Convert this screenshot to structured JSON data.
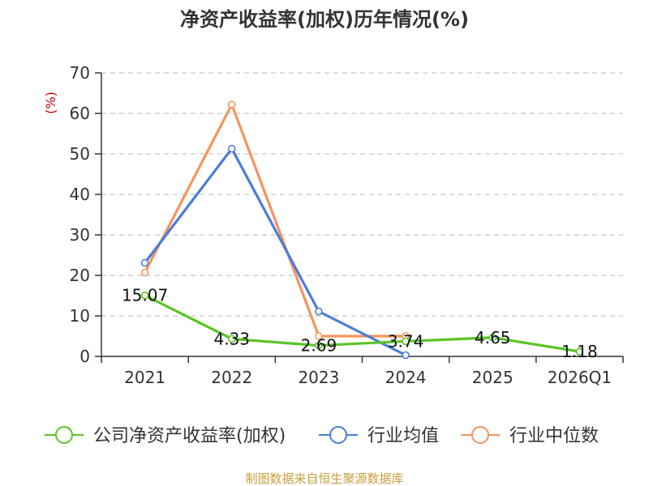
{
  "chart_data": {
    "type": "line",
    "title": "净资产收益率(加权)历年情况(%)",
    "ylabel": "(%)",
    "ylim": [
      0,
      70
    ],
    "yticks": [
      0,
      10,
      20,
      30,
      40,
      50,
      60,
      70
    ],
    "grid": true,
    "legend_position": "bottom",
    "categories": [
      "2021",
      "2022",
      "2023",
      "2024",
      "2025",
      "2026Q1"
    ],
    "series": [
      {
        "name": "公司净资产收益率(加权)",
        "color": "#5bc426",
        "values": [
          15.07,
          4.33,
          2.69,
          3.74,
          4.65,
          1.18
        ],
        "labels": [
          "15.07",
          "4.33",
          "2.69",
          "3.74",
          "4.65",
          "1.18"
        ]
      },
      {
        "name": "行业均值",
        "color": "#4a7ddb",
        "values": [
          23.1,
          51.3,
          11.1,
          0.3,
          null,
          null
        ]
      },
      {
        "name": "行业中位数",
        "color": "#f5935d",
        "values": [
          20.7,
          62.2,
          5.0,
          5.0,
          null,
          null
        ]
      }
    ],
    "source": "制图数据来自恒生聚源数据库",
    "colors": {
      "axis": "#333333",
      "grid": "#c8c8c8",
      "ylabel": "#cc0000",
      "source": "#c8a03c"
    }
  }
}
